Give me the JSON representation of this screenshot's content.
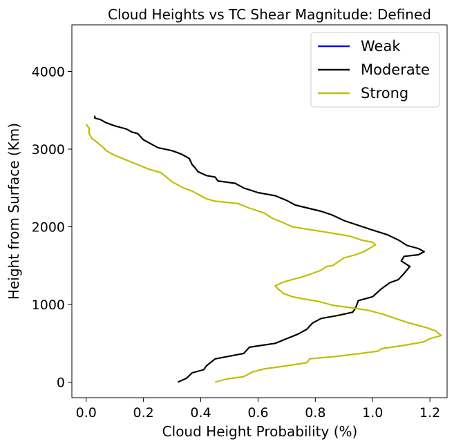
{
  "chart_data": {
    "type": "line",
    "title": "Cloud Heights vs TC Shear Magnitude: Defined",
    "xlabel": "Cloud Height Probability (%)",
    "ylabel": "Height from Surface (Km)",
    "xlim": [
      -0.05,
      1.26
    ],
    "ylim": [
      -200,
      4600
    ],
    "xticks": [
      0.0,
      0.2,
      0.4,
      0.6,
      0.8,
      1.0,
      1.2
    ],
    "xtick_labels": [
      "0.0",
      "0.2",
      "0.4",
      "0.6",
      "0.8",
      "1.0",
      "1.2"
    ],
    "yticks": [
      0,
      1000,
      2000,
      3000,
      4000
    ],
    "ytick_labels": [
      "0",
      "1000",
      "2000",
      "3000",
      "4000"
    ],
    "grid": false,
    "legend_position": "top-right",
    "series": [
      {
        "name": "Weak",
        "color": "#0000ff",
        "points": []
      },
      {
        "name": "Moderate",
        "color": "#000000",
        "points": [
          [
            0.32,
            0
          ],
          [
            0.35,
            50
          ],
          [
            0.37,
            120
          ],
          [
            0.41,
            160
          ],
          [
            0.42,
            210
          ],
          [
            0.45,
            300
          ],
          [
            0.55,
            370
          ],
          [
            0.57,
            450
          ],
          [
            0.66,
            500
          ],
          [
            0.7,
            560
          ],
          [
            0.74,
            620
          ],
          [
            0.77,
            680
          ],
          [
            0.79,
            760
          ],
          [
            0.82,
            820
          ],
          [
            0.88,
            860
          ],
          [
            0.93,
            900
          ],
          [
            0.94,
            950
          ],
          [
            0.95,
            1050
          ],
          [
            1.0,
            1100
          ],
          [
            1.03,
            1200
          ],
          [
            1.06,
            1280
          ],
          [
            1.09,
            1320
          ],
          [
            1.11,
            1400
          ],
          [
            1.13,
            1490
          ],
          [
            1.1,
            1560
          ],
          [
            1.11,
            1620
          ],
          [
            1.16,
            1640
          ],
          [
            1.18,
            1680
          ],
          [
            1.16,
            1720
          ],
          [
            1.12,
            1760
          ],
          [
            1.09,
            1830
          ],
          [
            1.05,
            1900
          ],
          [
            0.99,
            1970
          ],
          [
            0.9,
            2080
          ],
          [
            0.86,
            2150
          ],
          [
            0.82,
            2200
          ],
          [
            0.73,
            2280
          ],
          [
            0.7,
            2340
          ],
          [
            0.66,
            2400
          ],
          [
            0.6,
            2440
          ],
          [
            0.55,
            2500
          ],
          [
            0.52,
            2560
          ],
          [
            0.46,
            2590
          ],
          [
            0.45,
            2640
          ],
          [
            0.42,
            2660
          ],
          [
            0.39,
            2710
          ],
          [
            0.38,
            2760
          ],
          [
            0.37,
            2800
          ],
          [
            0.36,
            2880
          ],
          [
            0.33,
            2940
          ],
          [
            0.3,
            2980
          ],
          [
            0.25,
            3020
          ],
          [
            0.22,
            3080
          ],
          [
            0.2,
            3120
          ],
          [
            0.18,
            3200
          ],
          [
            0.16,
            3220
          ],
          [
            0.14,
            3260
          ],
          [
            0.1,
            3300
          ],
          [
            0.07,
            3340
          ],
          [
            0.05,
            3380
          ],
          [
            0.03,
            3400
          ],
          [
            0.03,
            3430
          ]
        ]
      },
      {
        "name": "Strong",
        "color": "#bfbf00",
        "points": [
          [
            0.45,
            0
          ],
          [
            0.49,
            40
          ],
          [
            0.55,
            70
          ],
          [
            0.58,
            130
          ],
          [
            0.62,
            170
          ],
          [
            0.68,
            200
          ],
          [
            0.77,
            250
          ],
          [
            0.78,
            300
          ],
          [
            0.87,
            330
          ],
          [
            0.96,
            370
          ],
          [
            1.02,
            400
          ],
          [
            1.03,
            430
          ],
          [
            1.12,
            480
          ],
          [
            1.18,
            520
          ],
          [
            1.2,
            560
          ],
          [
            1.24,
            600
          ],
          [
            1.22,
            660
          ],
          [
            1.19,
            700
          ],
          [
            1.12,
            770
          ],
          [
            1.08,
            820
          ],
          [
            1.04,
            870
          ],
          [
            0.99,
            920
          ],
          [
            0.94,
            950
          ],
          [
            0.86,
            990
          ],
          [
            0.81,
            1040
          ],
          [
            0.76,
            1070
          ],
          [
            0.72,
            1100
          ],
          [
            0.69,
            1140
          ],
          [
            0.67,
            1200
          ],
          [
            0.66,
            1240
          ],
          [
            0.69,
            1290
          ],
          [
            0.71,
            1310
          ],
          [
            0.75,
            1350
          ],
          [
            0.79,
            1400
          ],
          [
            0.82,
            1440
          ],
          [
            0.84,
            1490
          ],
          [
            0.86,
            1500
          ],
          [
            0.88,
            1550
          ],
          [
            0.9,
            1600
          ],
          [
            0.94,
            1640
          ],
          [
            0.97,
            1680
          ],
          [
            1.01,
            1770
          ],
          [
            1.0,
            1800
          ],
          [
            0.96,
            1830
          ],
          [
            0.92,
            1880
          ],
          [
            0.84,
            1930
          ],
          [
            0.72,
            2000
          ],
          [
            0.69,
            2050
          ],
          [
            0.65,
            2110
          ],
          [
            0.62,
            2180
          ],
          [
            0.57,
            2240
          ],
          [
            0.53,
            2300
          ],
          [
            0.45,
            2330
          ],
          [
            0.42,
            2360
          ],
          [
            0.4,
            2400
          ],
          [
            0.37,
            2460
          ],
          [
            0.34,
            2500
          ],
          [
            0.32,
            2540
          ],
          [
            0.3,
            2580
          ],
          [
            0.28,
            2640
          ],
          [
            0.26,
            2700
          ],
          [
            0.22,
            2740
          ],
          [
            0.18,
            2800
          ],
          [
            0.14,
            2860
          ],
          [
            0.1,
            2920
          ],
          [
            0.07,
            2980
          ],
          [
            0.06,
            3020
          ],
          [
            0.04,
            3080
          ],
          [
            0.02,
            3140
          ],
          [
            0.01,
            3200
          ],
          [
            0.01,
            3270
          ],
          [
            0.0,
            3320
          ]
        ]
      }
    ]
  }
}
